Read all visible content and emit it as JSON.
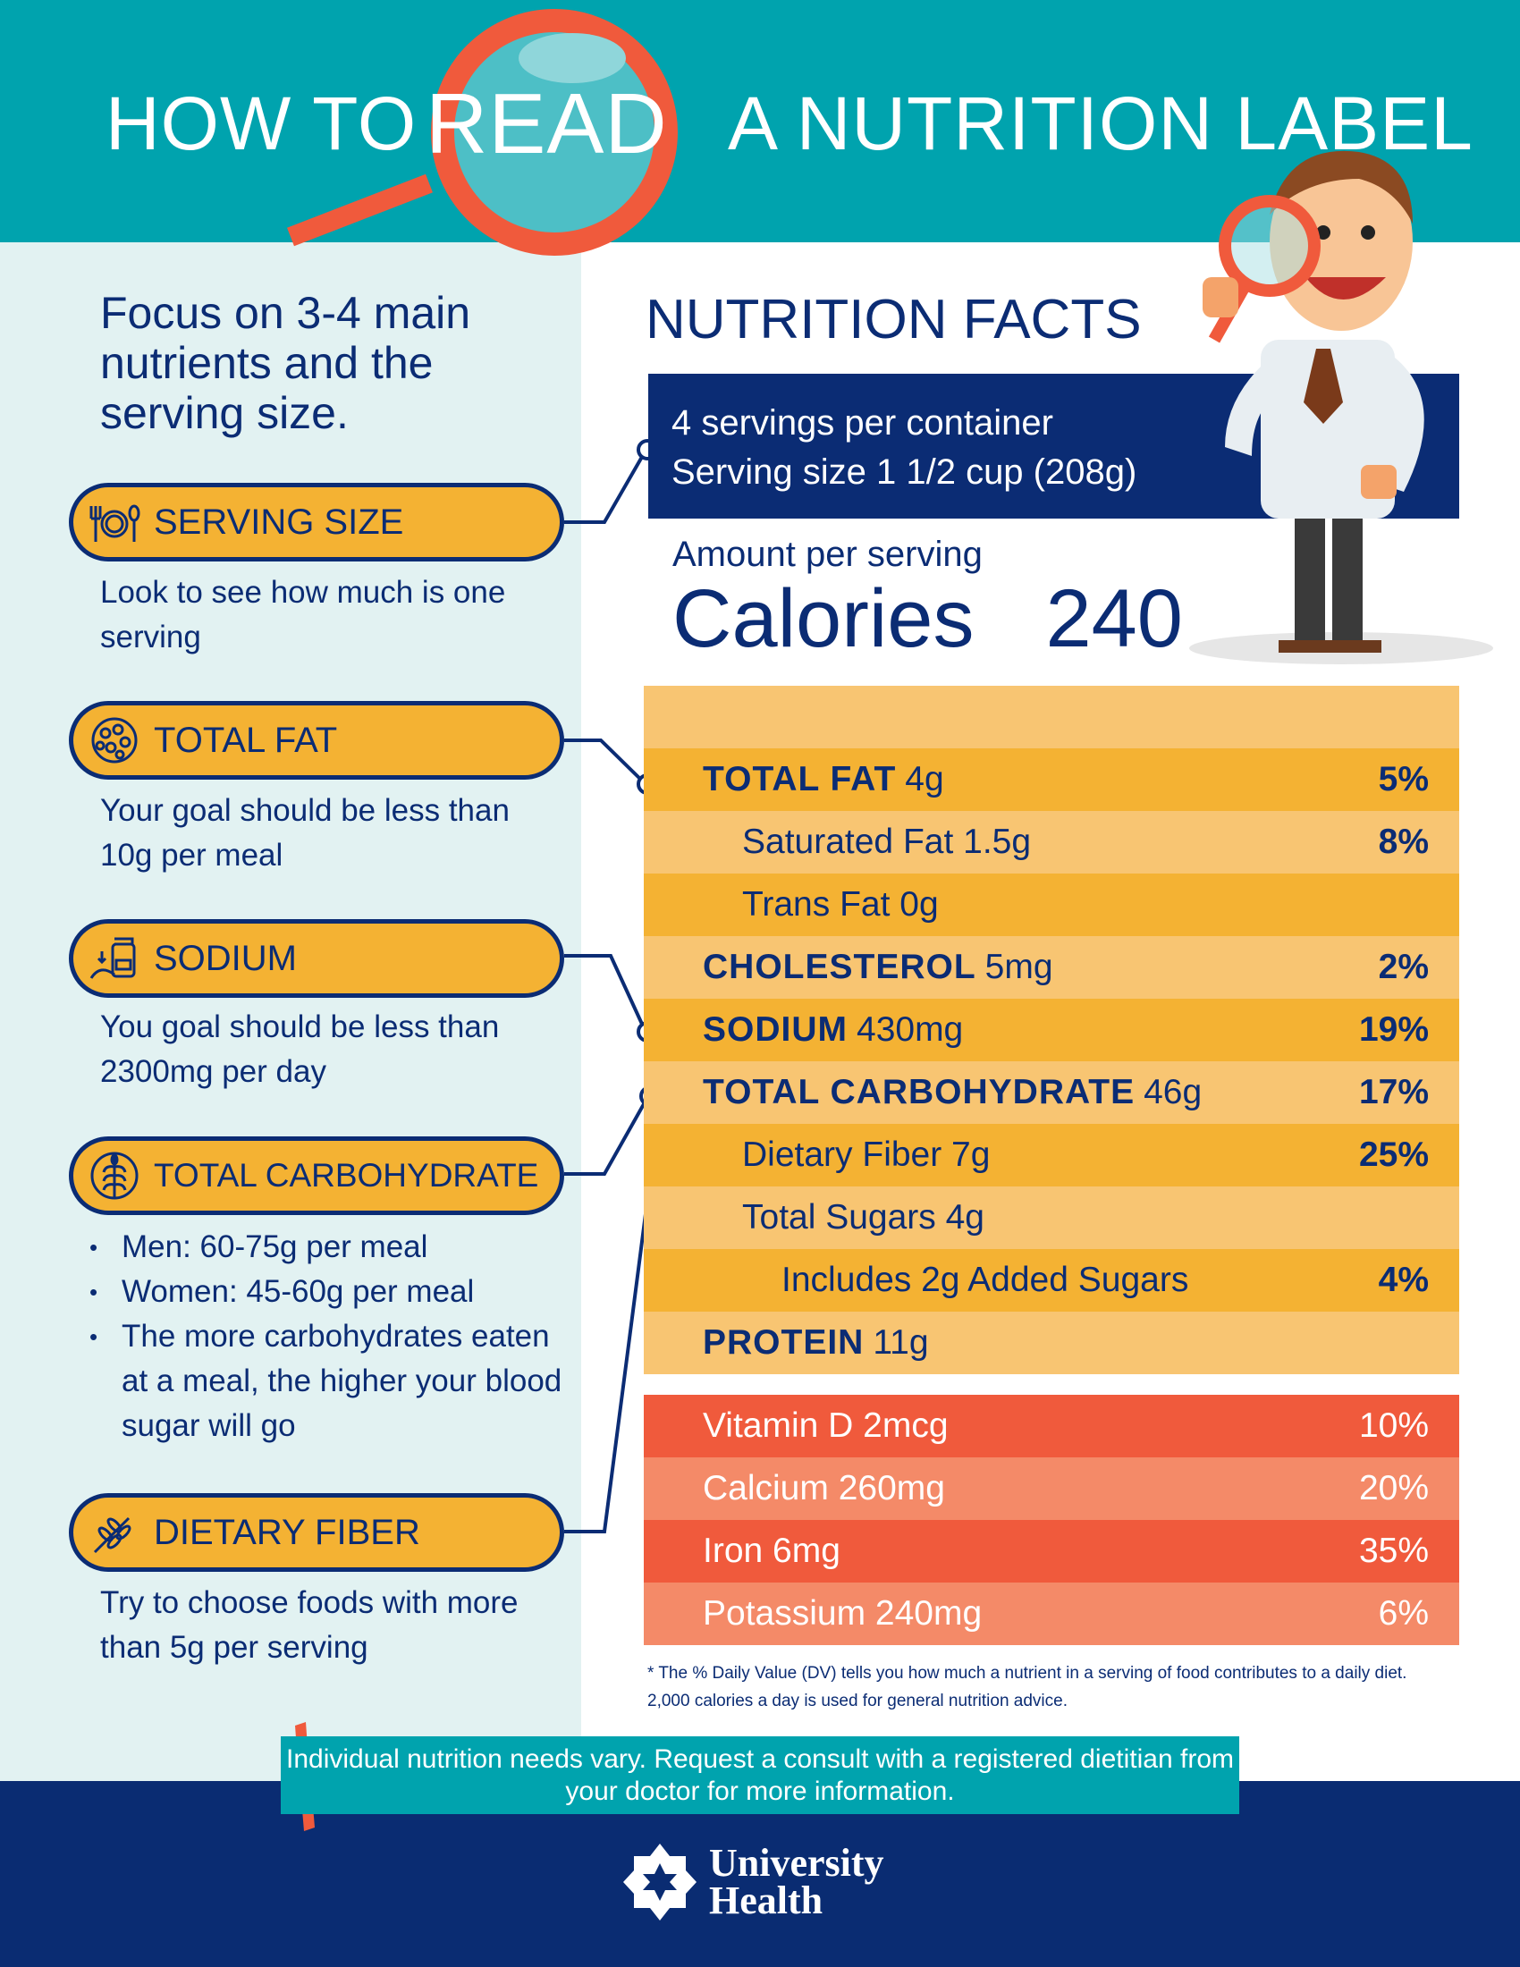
{
  "header": {
    "title_part1": "HOW TO",
    "title_highlight": "READ",
    "title_part2": "A NUTRITION LABEL"
  },
  "left": {
    "intro": "Focus on 3-4 main nutrients and the serving size.",
    "sections": [
      {
        "label": "SERVING SIZE",
        "icon": "plate-cutlery-icon",
        "desc": "Look to see how much is one serving"
      },
      {
        "label": "TOTAL FAT",
        "icon": "fat-icon",
        "desc": "Your goal should be less than 10g per meal"
      },
      {
        "label": "SODIUM",
        "icon": "salt-icon",
        "desc": "You goal should be less than 2300mg per day"
      },
      {
        "label": "TOTAL CARBOHYDRATE",
        "icon": "grain-icon",
        "bullets": [
          "Men: 60-75g per meal",
          "Women: 45-60g per meal",
          "The more carbohydrates eaten at a meal, the higher your blood sugar will go"
        ]
      },
      {
        "label": "DIETARY FIBER",
        "icon": "wheat-icon",
        "desc": "Try to choose foods with more than 5g per serving"
      }
    ]
  },
  "facts": {
    "title": "NUTRITION FACTS",
    "servings": "4 servings per container",
    "serving_size": "Serving size 1 1/2 cup (208g)",
    "amount": "Amount per serving",
    "calories_label": "Calories",
    "calories_value": "240",
    "rows": [
      {
        "name": "TOTAL FAT",
        "amt": "4g",
        "pct": "5%"
      },
      {
        "name": "Saturated Fat 1.5g",
        "pct": "8%"
      },
      {
        "name": "Trans Fat 0g",
        "pct": ""
      },
      {
        "name": "CHOLESTEROL",
        "amt": "5mg",
        "pct": "2%"
      },
      {
        "name": "SODIUM",
        "amt": "430mg",
        "pct": "19%"
      },
      {
        "name": "TOTAL CARBOHYDRATE",
        "amt": "46g",
        "pct": "17%"
      },
      {
        "name": "Dietary Fiber 7g",
        "pct": "25%"
      },
      {
        "name": "Total Sugars 4g",
        "pct": ""
      },
      {
        "name": "Includes 2g Added Sugars",
        "pct": "4%"
      },
      {
        "name": "PROTEIN",
        "amt": "11g",
        "pct": ""
      }
    ],
    "vitamins": [
      {
        "name": "Vitamin D 2mcg",
        "pct": "10%"
      },
      {
        "name": "Calcium 260mg",
        "pct": "20%"
      },
      {
        "name": "Iron 6mg",
        "pct": "35%"
      },
      {
        "name": "Potassium 240mg",
        "pct": "6%"
      }
    ],
    "footnote": "* The % Daily Value (DV) tells you how much a nutrient in a serving of food contributes to a daily diet. 2,000 calories a day is used for general nutrition advice."
  },
  "banner": "Individual nutrition needs vary. Request a consult with a registered dietitian from your doctor for more information.",
  "logo": {
    "line1": "University",
    "line2": "Health"
  },
  "colors": {
    "teal": "#00a3ae",
    "navy": "#0b2c74",
    "yellow": "#f4b233",
    "light_yellow": "#f8c572",
    "orange": "#f05a3c",
    "light_orange": "#f48a68",
    "light_teal": "#e2f2f2"
  }
}
